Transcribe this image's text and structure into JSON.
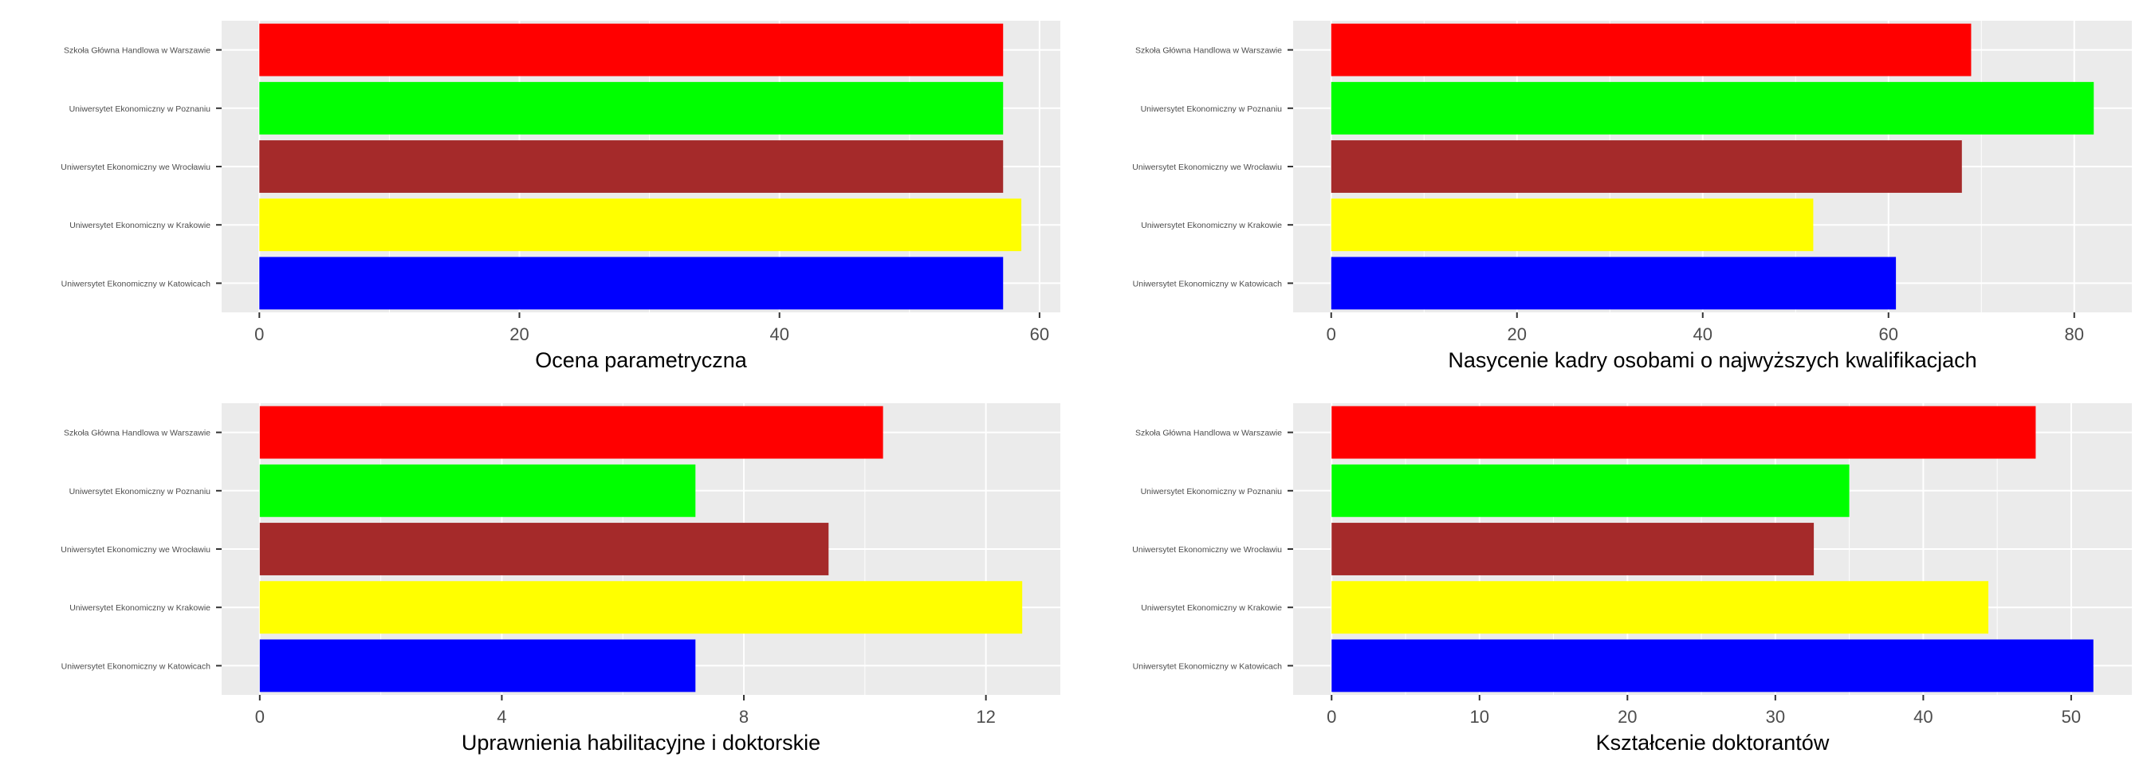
{
  "chart_data": [
    {
      "type": "bar",
      "orientation": "horizontal",
      "categories": [
        "Szkoła Główna Handlowa w Warszawie",
        "Uniwersytet Ekonomiczny w Poznaniu",
        "Uniwersytet Ekonomiczny we Wrocławiu",
        "Uniwersytet Ekonomiczny w Krakowie",
        "Uniwersytet Ekonomiczny w Katowicach"
      ],
      "values": [
        57.2,
        57.2,
        57.2,
        58.6,
        57.2
      ],
      "colors": [
        "#ff0000",
        "#00ff00",
        "#a52a2a",
        "#ffff00",
        "#0000ff"
      ],
      "xlabel": "Ocena parametryczna",
      "xlim": [
        -2.9,
        61.6
      ],
      "xticks": [
        0,
        20,
        40,
        60
      ],
      "grid": true
    },
    {
      "type": "bar",
      "orientation": "horizontal",
      "categories": [
        "Szkoła Główna Handlowa w Warszawie",
        "Uniwersytet Ekonomiczny w Poznaniu",
        "Uniwersytet Ekonomiczny we Wrocławiu",
        "Uniwersytet Ekonomiczny w Krakowie",
        "Uniwersytet Ekonomiczny w Katowicach"
      ],
      "values": [
        68.9,
        82.1,
        67.9,
        51.9,
        60.8
      ],
      "colors": [
        "#ff0000",
        "#00ff00",
        "#a52a2a",
        "#ffff00",
        "#0000ff"
      ],
      "xlabel": "Nasycenie kadry osobami o najwyższych kwalifikacjach",
      "xlim": [
        -4.1,
        86.2
      ],
      "xticks": [
        0,
        20,
        40,
        60,
        80
      ],
      "grid": true
    },
    {
      "type": "bar",
      "orientation": "horizontal",
      "categories": [
        "Szkoła Główna Handlowa w Warszawie",
        "Uniwersytet Ekonomiczny w Poznaniu",
        "Uniwersytet Ekonomiczny we Wrocławiu",
        "Uniwersytet Ekonomiczny w Krakowie",
        "Uniwersytet Ekonomiczny w Katowicach"
      ],
      "values": [
        10.3,
        7.2,
        9.4,
        12.6,
        7.2
      ],
      "colors": [
        "#ff0000",
        "#00ff00",
        "#a52a2a",
        "#ffff00",
        "#0000ff"
      ],
      "xlabel": "Uprawnienia habilitacyjne i doktorskie",
      "xlim": [
        -0.63,
        13.23
      ],
      "xticks": [
        0,
        4,
        8,
        12
      ],
      "grid": true
    },
    {
      "type": "bar",
      "orientation": "horizontal",
      "categories": [
        "Szkoła Główna Handlowa w Warszawie",
        "Uniwersytet Ekonomiczny w Poznaniu",
        "Uniwersytet Ekonomiczny we Wrocławiu",
        "Uniwersytet Ekonomiczny w Krakowie",
        "Uniwersytet Ekonomiczny w Katowicach"
      ],
      "values": [
        47.6,
        35.0,
        32.6,
        44.4,
        51.5
      ],
      "colors": [
        "#ff0000",
        "#00ff00",
        "#a52a2a",
        "#ffff00",
        "#0000ff"
      ],
      "xlabel": "Kształcenie doktorantów",
      "xlim": [
        -2.6,
        54.1
      ],
      "xticks": [
        0,
        10,
        20,
        30,
        40,
        50
      ],
      "grid": true
    }
  ]
}
